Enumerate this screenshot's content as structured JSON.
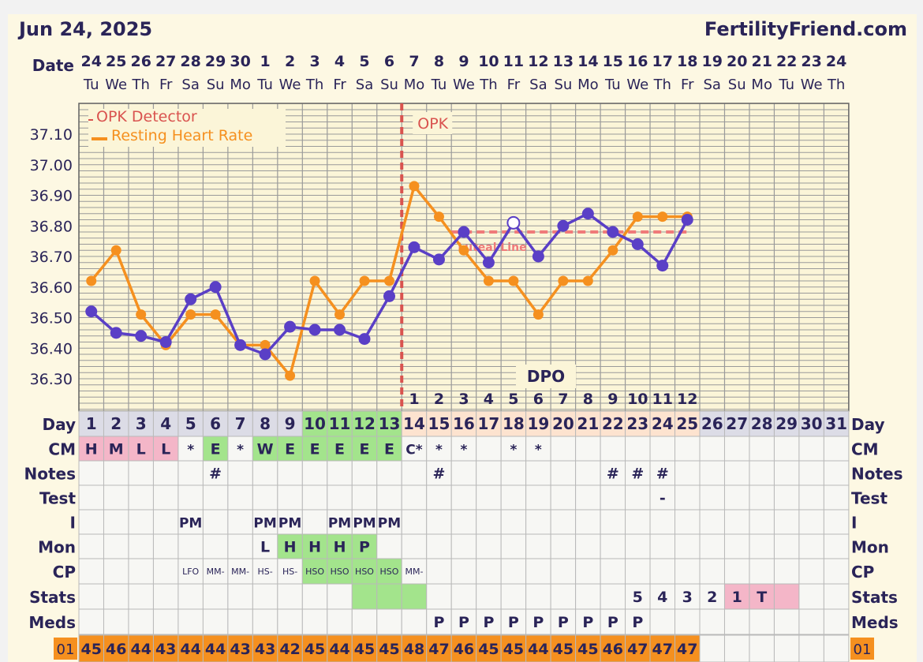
{
  "header": {
    "date": "Jun 24, 2025",
    "site": "FertilityFriend.com",
    "date_label": "Date"
  },
  "dates": [
    "24",
    "25",
    "26",
    "27",
    "28",
    "29",
    "30",
    "1",
    "2",
    "3",
    "4",
    "5",
    "6",
    "7",
    "8",
    "9",
    "10",
    "11",
    "12",
    "13",
    "14",
    "15",
    "16",
    "17",
    "18",
    "19",
    "20",
    "21",
    "22",
    "23",
    "24"
  ],
  "weekdays": [
    "Tu",
    "We",
    "Th",
    "Fr",
    "Sa",
    "Su",
    "Mo",
    "Tu",
    "We",
    "Th",
    "Fr",
    "Sa",
    "Su",
    "Mo",
    "Tu",
    "We",
    "Th",
    "Fr",
    "Sa",
    "Su",
    "Mo",
    "Tu",
    "We",
    "Th",
    "Fr",
    "Sa",
    "Su",
    "Mo",
    "Tu",
    "We",
    "Th"
  ],
  "colors": {
    "temp_line": "#5a3fc6",
    "hr_line": "#f5901f",
    "opk_line": "#d9534f",
    "coverline": "#f07a7a",
    "chart_bg": "#fbf5d8",
    "grid": "#9a9a9a",
    "text": "#2a2458",
    "green": "#a3e48c",
    "pink": "#f4b6c8",
    "peach": "#fde3cf",
    "day_grey": "#dcdce6",
    "orange_cell": "#f5901f"
  },
  "chart_data": {
    "type": "line",
    "x": [
      1,
      2,
      3,
      4,
      5,
      6,
      7,
      8,
      9,
      10,
      11,
      12,
      13,
      14,
      15,
      16,
      17,
      18,
      19,
      20,
      21,
      22,
      23,
      24,
      25,
      26,
      27,
      28,
      29,
      30,
      31
    ],
    "ylim": [
      36.22,
      37.2
    ],
    "yticks": [
      "36.30",
      "36.40",
      "36.50",
      "36.60",
      "36.70",
      "36.80",
      "36.90",
      "37.00",
      "37.10"
    ],
    "series": [
      {
        "name": "",
        "values": [
          36.52,
          36.45,
          36.44,
          36.42,
          36.56,
          36.6,
          36.41,
          36.38,
          36.47,
          36.46,
          36.46,
          36.43,
          36.57,
          36.73,
          36.69,
          36.78,
          36.68,
          36.81,
          36.7,
          36.8,
          36.84,
          36.78,
          36.74,
          36.67,
          36.82,
          null,
          null,
          null,
          null,
          null,
          null
        ],
        "open_points": [
          18
        ]
      },
      {
        "name": "Resting Heart Rate",
        "values": [
          36.62,
          36.72,
          36.51,
          36.41,
          36.51,
          36.51,
          36.41,
          36.41,
          36.31,
          36.62,
          36.51,
          36.62,
          36.62,
          36.93,
          36.83,
          36.72,
          36.62,
          36.62,
          36.51,
          36.62,
          36.62,
          36.72,
          36.83,
          36.83,
          36.83,
          null,
          null,
          null,
          null,
          null,
          null
        ]
      }
    ],
    "coverline": {
      "label": "Luteal Line",
      "value": 36.78,
      "from_day": 16,
      "to_day": 25
    },
    "opk_line": {
      "label": "OPK",
      "after_day": 13
    },
    "legend": [
      "OPK Detector",
      "Resting Heart Rate"
    ],
    "legend_position": "top-left",
    "dpo_label": "DPO",
    "dpo": [
      "",
      "",
      "",
      "",
      "",
      "",
      "",
      "",
      "",
      "",
      "",
      "",
      "",
      "1",
      "2",
      "3",
      "4",
      "5",
      "6",
      "7",
      "8",
      "9",
      "10",
      "11",
      "12",
      "",
      "",
      "",
      "",
      "",
      ""
    ]
  },
  "rows": {
    "day": {
      "label": "Day",
      "values": [
        "1",
        "2",
        "3",
        "4",
        "5",
        "6",
        "7",
        "8",
        "9",
        "10",
        "11",
        "12",
        "13",
        "14",
        "15",
        "16",
        "17",
        "18",
        "19",
        "20",
        "21",
        "22",
        "23",
        "24",
        "25",
        "26",
        "27",
        "28",
        "29",
        "30",
        "31"
      ]
    },
    "cm": {
      "label": "CM",
      "values": [
        "H",
        "M",
        "L",
        "L",
        "*",
        "E",
        "*",
        "W",
        "E",
        "E",
        "E",
        "E",
        "E",
        "C*",
        "*",
        "*",
        "",
        "*",
        "*",
        "",
        "",
        "",
        "",
        "",
        "",
        "",
        "",
        "",
        "",
        "",
        ""
      ],
      "fill": [
        "pink",
        "pink",
        "pink",
        "pink",
        "",
        "green",
        "",
        "green",
        "green",
        "green",
        "green",
        "green",
        "green",
        "",
        "",
        "",
        "",
        "",
        "",
        "",
        "",
        "",
        "",
        "",
        "",
        "",
        "",
        "",
        "",
        "",
        ""
      ]
    },
    "notes": {
      "label": "Notes",
      "values": [
        "",
        "",
        "",
        "",
        "",
        "#",
        "",
        "",
        "",
        "",
        "",
        "",
        "",
        "",
        "#",
        "",
        "",
        "",
        "",
        "",
        "",
        "#",
        "#",
        "#",
        "",
        "",
        "",
        "",
        "",
        "",
        ""
      ]
    },
    "test": {
      "label": "Test",
      "values": [
        "",
        "",
        "",
        "",
        "",
        "",
        "",
        "",
        "",
        "",
        "",
        "",
        "",
        "",
        "",
        "",
        "",
        "",
        "",
        "",
        "",
        "",
        "",
        "-",
        "",
        "",
        "",
        "",
        "",
        "",
        ""
      ]
    },
    "i": {
      "label": "I",
      "values": [
        "",
        "",
        "",
        "",
        "PM",
        "",
        "",
        "PM",
        "PM",
        "",
        "PM",
        "PM",
        "PM",
        "",
        "",
        "",
        "",
        "",
        "",
        "",
        "",
        "",
        "",
        "",
        "",
        "",
        "",
        "",
        "",
        "",
        ""
      ]
    },
    "mon": {
      "label": "Mon",
      "values": [
        "",
        "",
        "",
        "",
        "",
        "",
        "",
        "L",
        "H",
        "H",
        "H",
        "P",
        "",
        "",
        "",
        "",
        "",
        "",
        "",
        "",
        "",
        "",
        "",
        "",
        "",
        "",
        "",
        "",
        "",
        "",
        ""
      ],
      "fill": [
        "",
        "",
        "",
        "",
        "",
        "",
        "",
        "",
        "green",
        "green",
        "green",
        "green",
        "",
        "",
        "",
        "",
        "",
        "",
        "",
        "",
        "",
        "",
        "",
        "",
        "",
        "",
        "",
        "",
        "",
        "",
        ""
      ]
    },
    "cp": {
      "label": "CP",
      "values": [
        "",
        "",
        "",
        "",
        "LFO",
        "MM-",
        "MM-",
        "HS-",
        "HS-",
        "HSO",
        "HSO",
        "HSO",
        "HSO",
        "MM-",
        "",
        "",
        "",
        "",
        "",
        "",
        "",
        "",
        "",
        "",
        "",
        "",
        "",
        "",
        "",
        "",
        ""
      ],
      "fill": [
        "",
        "",
        "",
        "",
        "",
        "",
        "",
        "",
        "",
        "green",
        "green",
        "green",
        "green",
        "",
        "",
        "",
        "",
        "",
        "",
        "",
        "",
        "",
        "",
        "",
        "",
        "",
        "",
        "",
        "",
        "",
        ""
      ]
    },
    "stats": {
      "label": "Stats",
      "values": [
        "",
        "",
        "",
        "",
        "",
        "",
        "",
        "",
        "",
        "",
        "",
        "",
        "",
        "",
        "",
        "",
        "",
        "",
        "",
        "",
        "",
        "",
        "5",
        "4",
        "3",
        "2",
        "1",
        "T",
        "",
        "",
        ""
      ],
      "fill": [
        "",
        "",
        "",
        "",
        "",
        "",
        "",
        "",
        "",
        "",
        "",
        "green",
        "green",
        "green",
        "",
        "",
        "",
        "",
        "",
        "",
        "",
        "",
        "",
        "",
        "",
        "",
        "pink",
        "pink",
        "pink",
        "",
        ""
      ]
    },
    "meds": {
      "label": "Meds",
      "values": [
        "",
        "",
        "",
        "",
        "",
        "",
        "",
        "",
        "",
        "",
        "",
        "",
        "",
        "",
        "P",
        "P",
        "P",
        "P",
        "P",
        "P",
        "P",
        "P",
        "P",
        "",
        "",
        "",
        "",
        "",
        "",
        "",
        ""
      ]
    },
    "hr": {
      "label": "01",
      "values": [
        "45",
        "46",
        "44",
        "43",
        "44",
        "44",
        "43",
        "43",
        "42",
        "45",
        "44",
        "45",
        "45",
        "48",
        "47",
        "46",
        "45",
        "45",
        "44",
        "45",
        "45",
        "46",
        "47",
        "47",
        "47",
        "",
        "",
        "",
        "",
        "",
        ""
      ]
    }
  }
}
